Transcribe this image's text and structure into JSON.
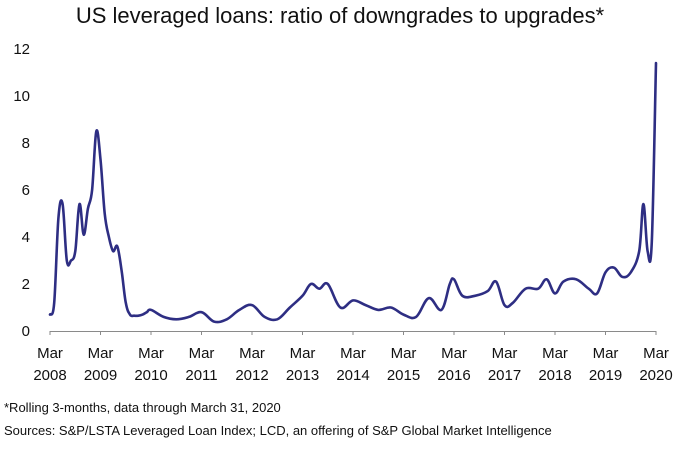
{
  "chart_data": {
    "type": "line",
    "title": "US leveraged loans: ratio of downgrades to upgrades*",
    "xlabel": "",
    "ylabel": "",
    "ylim": [
      0,
      12
    ],
    "yticks": [
      "0",
      "2",
      "4",
      "6",
      "8",
      "10",
      "12"
    ],
    "xlim": [
      "2008-03",
      "2020-03"
    ],
    "xticks": [
      {
        "month": "Mar",
        "year": "2008"
      },
      {
        "month": "Mar",
        "year": "2009"
      },
      {
        "month": "Mar",
        "year": "2010"
      },
      {
        "month": "Mar",
        "year": "2011"
      },
      {
        "month": "Mar",
        "year": "2012"
      },
      {
        "month": "Mar",
        "year": "2013"
      },
      {
        "month": "Mar",
        "year": "2014"
      },
      {
        "month": "Mar",
        "year": "2015"
      },
      {
        "month": "Mar",
        "year": "2016"
      },
      {
        "month": "Mar",
        "year": "2017"
      },
      {
        "month": "Mar",
        "year": "2018"
      },
      {
        "month": "Mar",
        "year": "2019"
      },
      {
        "month": "Mar",
        "year": "2020"
      }
    ],
    "grid": false,
    "legend": "none",
    "line_color": "#2E2E83",
    "series": [
      {
        "x": [
          "2008-03",
          "2008-04",
          "2008-05",
          "2008-06",
          "2008-07",
          "2008-08",
          "2008-09",
          "2008-10",
          "2008-11",
          "2008-12",
          "2009-01",
          "2009-02",
          "2009-03",
          "2009-04",
          "2009-05",
          "2009-06",
          "2009-07",
          "2009-08",
          "2009-09",
          "2009-10",
          "2009-11",
          "2009-12",
          "2010-01",
          "2010-02",
          "2010-03",
          "2010-06",
          "2010-09",
          "2010-12",
          "2011-03",
          "2011-06",
          "2011-09",
          "2011-12",
          "2012-03",
          "2012-06",
          "2012-09",
          "2012-12",
          "2013-03",
          "2013-05",
          "2013-07",
          "2013-09",
          "2013-12",
          "2014-03",
          "2014-06",
          "2014-09",
          "2014-12",
          "2015-03",
          "2015-06",
          "2015-09",
          "2015-12",
          "2016-02",
          "2016-03",
          "2016-05",
          "2016-08",
          "2016-11",
          "2017-01",
          "2017-03",
          "2017-05",
          "2017-08",
          "2017-11",
          "2018-01",
          "2018-03",
          "2018-05",
          "2018-08",
          "2018-11",
          "2019-01",
          "2019-03",
          "2019-05",
          "2019-07",
          "2019-09",
          "2019-11",
          "2019-12",
          "2020-01",
          "2020-02",
          "2020-03"
        ],
        "y": [
          0.7,
          1.2,
          4.8,
          5.4,
          3.0,
          3.0,
          3.4,
          5.4,
          4.1,
          5.2,
          6.0,
          8.5,
          7.3,
          5.0,
          4.0,
          3.4,
          3.6,
          2.6,
          1.2,
          0.7,
          0.65,
          0.65,
          0.7,
          0.8,
          0.9,
          0.6,
          0.5,
          0.6,
          0.8,
          0.4,
          0.5,
          0.9,
          1.1,
          0.6,
          0.5,
          1.0,
          1.5,
          2.0,
          1.8,
          2.0,
          1.0,
          1.3,
          1.1,
          0.9,
          1.0,
          0.7,
          0.6,
          1.4,
          0.9,
          2.0,
          2.2,
          1.5,
          1.5,
          1.7,
          2.1,
          1.1,
          1.2,
          1.8,
          1.8,
          2.2,
          1.6,
          2.1,
          2.2,
          1.8,
          1.6,
          2.5,
          2.7,
          2.3,
          2.5,
          3.4,
          5.4,
          3.4,
          3.8,
          11.4
        ]
      }
    ]
  },
  "footnotes": {
    "note": "*Rolling 3-months, data through March 31, 2020",
    "source": "Sources: S&P/LSTA Leveraged Loan Index; LCD, an offering of S&P Global Market Intelligence"
  }
}
